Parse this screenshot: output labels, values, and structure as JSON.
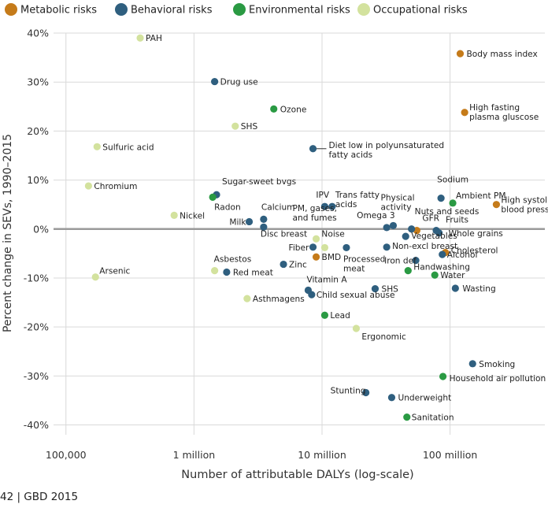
{
  "chart_data": {
    "type": "scatter",
    "title": "",
    "xlabel": "Number of attributable DALYs (log-scale)",
    "ylabel": "Percent change in SEVs, 1990–2015",
    "x_scale": "log",
    "xlim": [
      80000,
      550000000
    ],
    "ylim": [
      -42,
      40
    ],
    "x_ticks": [
      {
        "value": 100000,
        "label": "100,000"
      },
      {
        "value": 1000000,
        "label": "1 million"
      },
      {
        "value": 10000000,
        "label": "10 million"
      },
      {
        "value": 100000000,
        "label": "100 million"
      }
    ],
    "y_ticks": [
      {
        "value": 40,
        "label": "40%"
      },
      {
        "value": 30,
        "label": "30%"
      },
      {
        "value": 20,
        "label": "20%"
      },
      {
        "value": 10,
        "label": "10%"
      },
      {
        "value": 0,
        "label": "0%"
      },
      {
        "value": -10,
        "label": "-10%"
      },
      {
        "value": -20,
        "label": "-20%"
      },
      {
        "value": -30,
        "label": "-30%"
      },
      {
        "value": -40,
        "label": "-40%"
      }
    ],
    "grid": true,
    "legend_position": "top",
    "series": [
      {
        "name": "Metabolic risks",
        "color": "#c57b1a",
        "points": [
          {
            "label": "Body mass index",
            "x": 120000000,
            "y": 35.8
          },
          {
            "label": "High fasting plasma gluscose",
            "x": 130000000,
            "y": 23.8
          },
          {
            "label": "High systolic blood pressure",
            "x": 230000000,
            "y": 5
          },
          {
            "label": "GFR",
            "x": 55000000,
            "y": -0.3
          },
          {
            "label": "Cholesterol",
            "x": 92000000,
            "y": -4.8
          },
          {
            "label": "BMD",
            "x": 9000000,
            "y": -5.7
          }
        ]
      },
      {
        "name": "Behavioral risks",
        "color": "#2f5f7f",
        "points": [
          {
            "label": "Drug use",
            "x": 1450000,
            "y": 30.1
          },
          {
            "label": "Diet low in polyunsaturated fatty acids",
            "x": 8500000,
            "y": 16.4
          },
          {
            "label": "Sugar-sweet bvgs",
            "x": 1500000,
            "y": 7
          },
          {
            "label": "Sodium",
            "x": 85000000,
            "y": 6.3
          },
          {
            "label": "IPV",
            "x": 10500000,
            "y": 4.6
          },
          {
            "label": "Trans fatty acids",
            "x": 12000000,
            "y": 4.6
          },
          {
            "label": "Milk",
            "x": 2700000,
            "y": 1.5
          },
          {
            "label": "Calcium",
            "x": 3500000,
            "y": 2
          },
          {
            "label": "Disc breast",
            "x": 3500000,
            "y": 0.4
          },
          {
            "label": "Omega 3",
            "x": 32000000,
            "y": 0.3
          },
          {
            "label": "Physical activity",
            "x": 36000000,
            "y": 0.7
          },
          {
            "label": "Nuts and seeds",
            "x": 50000000,
            "y": 0
          },
          {
            "label": "Fruits",
            "x": 78000000,
            "y": -0.3
          },
          {
            "label": "Whole grains",
            "x": 82000000,
            "y": -0.8
          },
          {
            "label": "Vegetables",
            "x": 45000000,
            "y": -1.5
          },
          {
            "label": "Fiber",
            "x": 8500000,
            "y": -3.7
          },
          {
            "label": "Processed meat",
            "x": 15500000,
            "y": -3.8
          },
          {
            "label": "Non-excl breast",
            "x": 32000000,
            "y": -3.7
          },
          {
            "label": "Alcohol",
            "x": 87000000,
            "y": -5.2
          },
          {
            "label": "Iron def",
            "x": 54000000,
            "y": -6.4
          },
          {
            "label": "Zinc",
            "x": 5000000,
            "y": -7.2
          },
          {
            "label": "Red meat",
            "x": 1800000,
            "y": -8.8
          },
          {
            "label": "Vitamin A",
            "x": 7800000,
            "y": -12.5
          },
          {
            "label": "Child sexual abuse",
            "x": 8300000,
            "y": -13.4
          },
          {
            "label": "SHS",
            "x": 26000000,
            "y": -12.2
          },
          {
            "label": "Wasting",
            "x": 110000000,
            "y": -12.1
          },
          {
            "label": "Smoking",
            "x": 150000000,
            "y": -27.5
          },
          {
            "label": "Stunting",
            "x": 22000000,
            "y": -33.4
          },
          {
            "label": "Underweight",
            "x": 35000000,
            "y": -34.4
          }
        ]
      },
      {
        "name": "Environmental risks",
        "color": "#2a9a43",
        "points": [
          {
            "label": "Ozone",
            "x": 4200000,
            "y": 24.5
          },
          {
            "label": "Radon",
            "x": 1400000,
            "y": 6.5
          },
          {
            "label": "Ambient PM",
            "x": 105000000,
            "y": 5.3
          },
          {
            "label": "Handwashing",
            "x": 47000000,
            "y": -8.5
          },
          {
            "label": "Water",
            "x": 76000000,
            "y": -9.4
          },
          {
            "label": "Lead",
            "x": 10500000,
            "y": -17.6
          },
          {
            "label": "Household air pollution",
            "x": 88000000,
            "y": -30.1
          },
          {
            "label": "Sanitation",
            "x": 46000000,
            "y": -38.4
          }
        ]
      },
      {
        "name": "Occupational risks",
        "color": "#d3e29e",
        "points": [
          {
            "label": "PAH",
            "x": 380000,
            "y": 39
          },
          {
            "label": "SHS",
            "x": 2100000,
            "y": 21
          },
          {
            "label": "Sulfuric acid",
            "x": 175000,
            "y": 16.8
          },
          {
            "label": "Chromium",
            "x": 150000,
            "y": 8.8
          },
          {
            "label": "Nickel",
            "x": 700000,
            "y": 2.8
          },
          {
            "label": "PM, gases, and fumes",
            "x": 9000000,
            "y": -2
          },
          {
            "label": "Noise",
            "x": 10500000,
            "y": -3.8
          },
          {
            "label": "Asbestos",
            "x": 1450000,
            "y": -8.5
          },
          {
            "label": "Arsenic",
            "x": 170000,
            "y": -9.8
          },
          {
            "label": "Asthmagens",
            "x": 2600000,
            "y": -14.2
          },
          {
            "label": "Ergonomic",
            "x": 18500000,
            "y": -20.3
          }
        ]
      }
    ]
  },
  "footer": {
    "text": "42  |  GBD 2015"
  }
}
